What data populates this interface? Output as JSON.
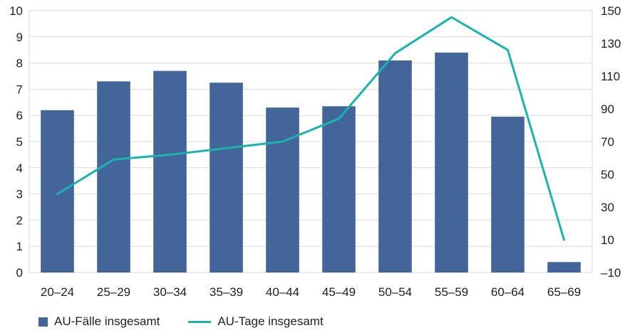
{
  "chart_data": {
    "type": "bar",
    "categories": [
      "20–24",
      "25–29",
      "30–34",
      "35–39",
      "40–44",
      "45–49",
      "50–54",
      "55–59",
      "60–64",
      "65–69"
    ],
    "series": [
      {
        "name": "AU-Fälle insgesamt",
        "type": "bar",
        "axis": "left",
        "color": "#44659a",
        "values": [
          6.2,
          7.3,
          7.7,
          7.25,
          6.3,
          6.35,
          8.1,
          8.4,
          5.95,
          0.4
        ]
      },
      {
        "name": "AU-Tage insgesamt",
        "type": "line",
        "axis": "right",
        "color": "#1ab3ad",
        "values": [
          38,
          59,
          62,
          66,
          70,
          84,
          124,
          146,
          126,
          10
        ]
      }
    ],
    "y_left": {
      "min": 0,
      "max": 10,
      "ticks": [
        "0",
        "1",
        "2",
        "3",
        "4",
        "5",
        "6",
        "7",
        "8",
        "9",
        "10"
      ]
    },
    "y_right": {
      "min": -10,
      "max": 150,
      "ticks": [
        "–10",
        "10",
        "30",
        "50",
        "70",
        "90",
        "110",
        "130",
        "150"
      ]
    },
    "grid": true,
    "legend_position": "bottom-left"
  }
}
